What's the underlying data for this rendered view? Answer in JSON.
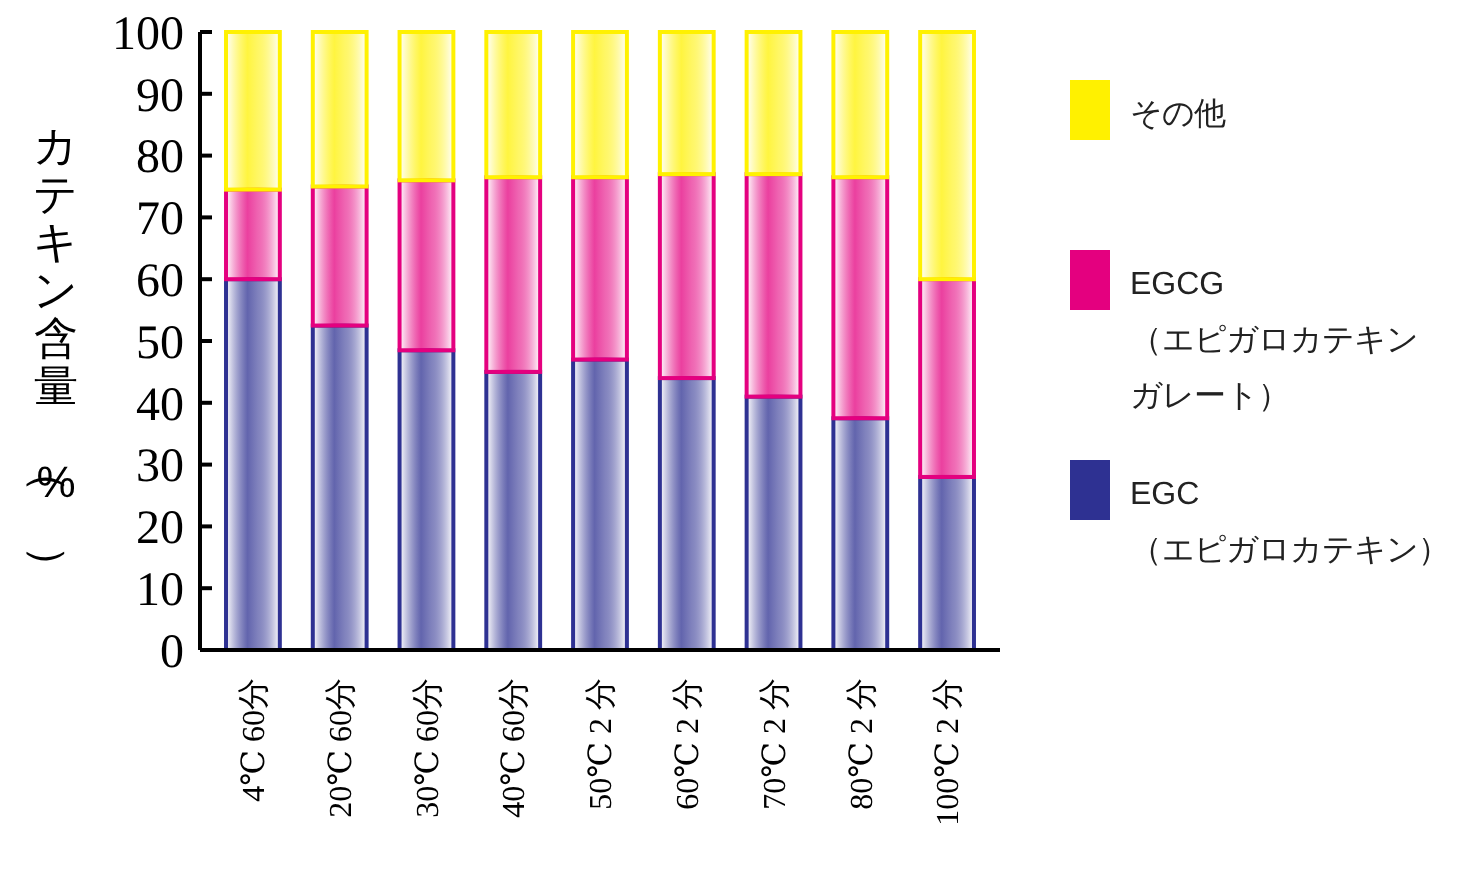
{
  "chart_data": {
    "type": "bar",
    "stacked": true,
    "ylabel": "カテキン含量（%）",
    "categories": [
      "4℃ 60分",
      "20℃ 60分",
      "30℃ 60分",
      "40℃ 60分",
      "50℃ 2 分",
      "60℃ 2 分",
      "70℃ 2 分",
      "80℃ 2 分",
      "100℃ 2 分"
    ],
    "series": [
      {
        "name": "EGC（エピガロカテキン）",
        "color": "#2e3192",
        "values": [
          60,
          52.5,
          48.5,
          45,
          47,
          44,
          41,
          37.5,
          28
        ]
      },
      {
        "name": "EGCG（エピガロカテキンガレート）",
        "color": "#e4007f",
        "values": [
          14.5,
          22.5,
          27.5,
          31.5,
          29.5,
          33,
          36,
          39,
          32
        ]
      },
      {
        "name": "その他",
        "color": "#fff100",
        "values": [
          25.5,
          25,
          24,
          23.5,
          23.5,
          23,
          23,
          23.5,
          40
        ]
      }
    ],
    "ylim": [
      0,
      100
    ],
    "yticks": [
      0,
      10,
      20,
      30,
      40,
      50,
      60,
      70,
      80,
      90,
      100
    ],
    "legend": "right",
    "grid": false
  }
}
